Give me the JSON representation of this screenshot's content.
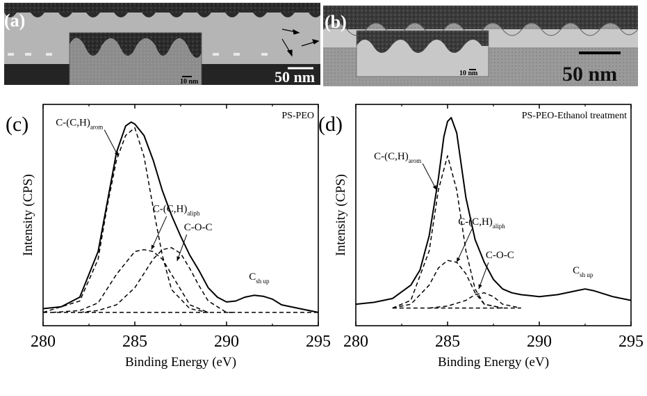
{
  "sem_panels": [
    {
      "letter": "(a)",
      "scale_label": "50 nm",
      "inset_scale_label": "10 nm"
    },
    {
      "letter": "(b)",
      "scale_label": "50 nm",
      "inset_scale_label": "10 nm"
    }
  ],
  "chart_data": [
    {
      "type": "line",
      "panel_letter": "(c)",
      "title": "PS-PEO",
      "xlabel": "Binding Energy (eV)",
      "ylabel": "Intensity (CPS)",
      "xlim": [
        280,
        295
      ],
      "xticks": [
        280,
        285,
        290,
        295
      ],
      "yticks_shown": false,
      "grid": false,
      "series": [
        {
          "style": "solid",
          "x": [
            280,
            281,
            282,
            283,
            283.5,
            284,
            284.5,
            284.8,
            285,
            285.5,
            286,
            286.5,
            287,
            287.5,
            288,
            288.5,
            289,
            289.5,
            290,
            290.5,
            291,
            291.5,
            292,
            292.5,
            293,
            294,
            295
          ],
          "y": [
            0.02,
            0.03,
            0.08,
            0.32,
            0.58,
            0.84,
            0.98,
            1.0,
            0.99,
            0.93,
            0.8,
            0.64,
            0.51,
            0.4,
            0.3,
            0.22,
            0.13,
            0.08,
            0.055,
            0.06,
            0.08,
            0.09,
            0.085,
            0.07,
            0.04,
            0.02,
            0.0
          ]
        },
        {
          "style": "dashed",
          "x": [
            280,
            282,
            283,
            283.5,
            284,
            284.5,
            285,
            285.5,
            286,
            286.5,
            287,
            288,
            289
          ],
          "y": [
            0.0,
            0.06,
            0.28,
            0.56,
            0.8,
            0.93,
            0.97,
            0.82,
            0.55,
            0.3,
            0.12,
            0.02,
            0.0
          ]
        },
        {
          "style": "dashed",
          "x": [
            280.5,
            282,
            283,
            284,
            285,
            285.5,
            286,
            286.5,
            287,
            288,
            289
          ],
          "y": [
            0.0,
            0.01,
            0.05,
            0.2,
            0.32,
            0.33,
            0.32,
            0.28,
            0.2,
            0.04,
            0.0
          ]
        },
        {
          "style": "dashed",
          "x": [
            282,
            283,
            284,
            285,
            286,
            286.5,
            287,
            287.5,
            288,
            288.5,
            289,
            290,
            290.5
          ],
          "y": [
            0.0,
            0.01,
            0.04,
            0.13,
            0.28,
            0.33,
            0.34,
            0.31,
            0.23,
            0.14,
            0.06,
            0.0,
            0.0
          ]
        },
        {
          "style": "dashed",
          "x": [
            280,
            283,
            287,
            290,
            295
          ],
          "y": [
            0.0,
            0.0,
            0.0,
            0.0,
            0.0
          ]
        }
      ],
      "annotations": [
        {
          "text": "C-(C,H)",
          "sub": "arom",
          "x": 284.1,
          "y": 0.82
        },
        {
          "text": "C-(C,H)",
          "sub": "aliph",
          "x": 285.9,
          "y": 0.33
        },
        {
          "text": "C-O-C",
          "sub": "",
          "x": 287.3,
          "y": 0.27
        },
        {
          "text": "C",
          "sub": "sh up",
          "x": 291.6,
          "y": 0.12
        }
      ]
    },
    {
      "type": "line",
      "panel_letter": "(d)",
      "title": "PS-PEO-Ethanol treatment",
      "xlabel": "Binding Energy (eV)",
      "ylabel": "Intensity (CPS)",
      "xlim": [
        280,
        295
      ],
      "xticks": [
        280,
        285,
        290,
        295
      ],
      "yticks_shown": false,
      "grid": false,
      "series": [
        {
          "style": "solid",
          "x": [
            280,
            281,
            282,
            283,
            283.5,
            284,
            284.5,
            284.8,
            285,
            285.2,
            285.5,
            286,
            286.5,
            287,
            287.5,
            288,
            288.5,
            289,
            289.5,
            290,
            291,
            292,
            292.5,
            293,
            294,
            295
          ],
          "y": [
            0.02,
            0.03,
            0.05,
            0.12,
            0.2,
            0.38,
            0.68,
            0.9,
            0.98,
            1.0,
            0.92,
            0.58,
            0.36,
            0.24,
            0.15,
            0.1,
            0.08,
            0.07,
            0.065,
            0.06,
            0.07,
            0.09,
            0.1,
            0.09,
            0.06,
            0.04
          ]
        },
        {
          "style": "dashed",
          "x": [
            282,
            283,
            284,
            284.5,
            285,
            285.5,
            286,
            286.5,
            287,
            288
          ],
          "y": [
            0.0,
            0.04,
            0.3,
            0.62,
            0.8,
            0.62,
            0.3,
            0.1,
            0.02,
            0.0
          ]
        },
        {
          "style": "dashed",
          "x": [
            282,
            283,
            284,
            284.5,
            285,
            285.5,
            286,
            286.5,
            287,
            288
          ],
          "y": [
            0.0,
            0.02,
            0.12,
            0.21,
            0.25,
            0.24,
            0.18,
            0.08,
            0.02,
            0.0
          ]
        },
        {
          "style": "dashed",
          "x": [
            284,
            285,
            286,
            286.5,
            287,
            287.5,
            288,
            289
          ],
          "y": [
            0.0,
            0.01,
            0.04,
            0.07,
            0.08,
            0.06,
            0.02,
            0.0
          ]
        },
        {
          "style": "dashed",
          "x": [
            282,
            284,
            286,
            289
          ],
          "y": [
            0.0,
            0.0,
            0.0,
            0.0
          ]
        }
      ],
      "annotations": [
        {
          "text": "C-(C,H)",
          "sub": "arom",
          "x": 284.4,
          "y": 0.62
        },
        {
          "text": "C-(C,H)",
          "sub": "aliph",
          "x": 285.5,
          "y": 0.24
        },
        {
          "text": "C-O-C",
          "sub": "",
          "x": 286.7,
          "y": 0.1
        },
        {
          "text": "C",
          "sub": "sh up",
          "x": 292.2,
          "y": 0.13
        }
      ]
    }
  ]
}
